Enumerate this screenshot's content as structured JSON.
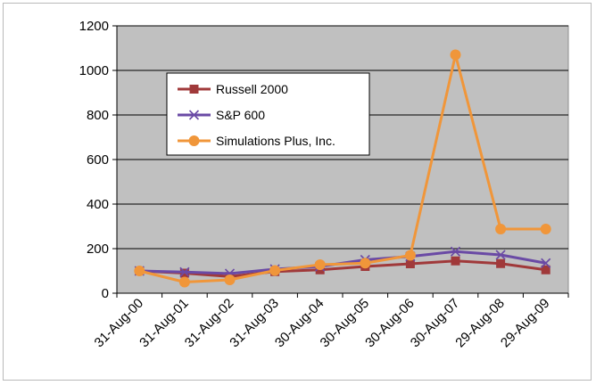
{
  "chart_data": {
    "type": "line",
    "title": "",
    "xlabel": "",
    "ylabel": "",
    "categories": [
      "31-Aug-00",
      "31-Aug-01",
      "31-Aug-02",
      "31-Aug-03",
      "30-Aug-04",
      "30-Aug-05",
      "30-Aug-06",
      "30-Aug-07",
      "29-Aug-08",
      "29-Aug-09"
    ],
    "ylim": [
      0,
      1200
    ],
    "yticks": [
      0,
      200,
      400,
      600,
      800,
      1000,
      1200
    ],
    "grid": true,
    "plot_background": "#c0c0c0",
    "legend_position": "upper-left inside plot",
    "series": [
      {
        "name": "Russell 2000",
        "color": "#a0393a",
        "marker": "square",
        "values": [
          100,
          90,
          75,
          97,
          105,
          120,
          132,
          145,
          133,
          105
        ]
      },
      {
        "name": "S&P 600",
        "color": "#6a4aa5",
        "marker": "x",
        "values": [
          100,
          95,
          88,
          108,
          120,
          150,
          165,
          187,
          172,
          135
        ]
      },
      {
        "name": "Simulations Plus, Inc.",
        "color": "#f0963a",
        "marker": "circle",
        "values": [
          100,
          50,
          60,
          102,
          128,
          135,
          170,
          1070,
          288,
          288
        ]
      }
    ]
  }
}
